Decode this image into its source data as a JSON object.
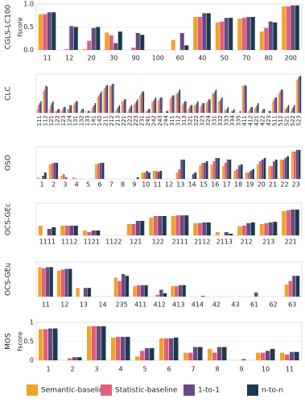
{
  "chart_data": [
    {
      "type": "bar",
      "title": "CGLS-LC100",
      "ylabel": "fscore",
      "categories": [
        "11",
        "12",
        "20",
        "30",
        "90",
        "100",
        "60",
        "40",
        "50",
        "70",
        "80",
        "200"
      ],
      "ylim": [
        0,
        1
      ],
      "yticks": [
        {
          "value": 0,
          "label": "0.0"
        },
        {
          "value": 0.5,
          "label": "0.5"
        },
        {
          "value": 1,
          "label": "1.0"
        }
      ],
      "series": [
        {
          "color": "#f0a32a",
          "values": [
            0.78,
            0,
            0.02,
            0.38,
            0,
            0,
            0.22,
            0.72,
            0.6,
            0.68,
            0.4,
            0.95
          ]
        },
        {
          "color": "#e0607a",
          "values": [
            0.78,
            0.02,
            0.2,
            0.32,
            0.05,
            0,
            0,
            0.72,
            0.62,
            0.7,
            0.48,
            0.95
          ]
        },
        {
          "color": "#6a4a80",
          "values": [
            0.82,
            0.52,
            0.48,
            0.15,
            0.37,
            0,
            0.37,
            0.8,
            0.7,
            0.72,
            0.62,
            0.97
          ]
        },
        {
          "color": "#1a3a50",
          "values": [
            0.82,
            0.5,
            0.5,
            0.4,
            0.33,
            0,
            0.1,
            0.8,
            0.7,
            0.72,
            0.6,
            0.97
          ]
        }
      ]
    },
    {
      "type": "bar",
      "title": "CLC",
      "categories": [
        "111",
        "112",
        "121",
        "122",
        "123",
        "124",
        "131",
        "132",
        "133",
        "141",
        "142",
        "211",
        "212",
        "213",
        "221",
        "222",
        "223",
        "231",
        "241",
        "242",
        "243",
        "244",
        "311",
        "312",
        "313",
        "321",
        "322",
        "323",
        "324",
        "331",
        "332",
        "333",
        "334",
        "335",
        "411",
        "412",
        "421",
        "422",
        "423",
        "511",
        "512",
        "521",
        "522",
        "523"
      ],
      "ylim": [
        0,
        1
      ],
      "series": [
        {
          "color": "#f0a32a",
          "values": [
            0.1,
            0.55,
            0.1,
            0.05,
            0.05,
            0.1,
            0.2,
            0,
            0.05,
            0.1,
            0.4,
            0.6,
            0.7,
            0.05,
            0.3,
            0.05,
            0.2,
            0.45,
            0.05,
            0.3,
            0.3,
            0,
            0.35,
            0.5,
            0.2,
            0.1,
            0.2,
            0.15,
            0.25,
            0.5,
            0.3,
            0.1,
            0,
            0,
            0.7,
            0.05,
            0.1,
            0,
            0,
            0.3,
            0.5,
            0.1,
            0.05,
            0.85
          ]
        },
        {
          "color": "#e0607a",
          "values": [
            0.2,
            0.6,
            0.2,
            0.05,
            0.1,
            0.1,
            0.25,
            0.05,
            0,
            0.15,
            0.45,
            0.65,
            0.7,
            0.1,
            0.3,
            0.1,
            0.25,
            0.5,
            0.05,
            0.3,
            0.35,
            0,
            0.4,
            0.5,
            0.25,
            0.15,
            0.2,
            0.2,
            0.3,
            0.5,
            0.3,
            0.05,
            0.05,
            0,
            0.7,
            0.1,
            0.15,
            0.05,
            0,
            0.35,
            0.55,
            0.1,
            0.1,
            0.9
          ]
        },
        {
          "color": "#6a4a80",
          "values": [
            0.25,
            0.7,
            0.25,
            0.1,
            0.15,
            0.2,
            0.3,
            0.1,
            0.05,
            0.2,
            0.5,
            0.7,
            0.75,
            0.15,
            0.35,
            0.15,
            0.3,
            0.55,
            0.1,
            0.35,
            0.4,
            0.05,
            0.45,
            0.55,
            0.3,
            0.2,
            0.25,
            0.25,
            0.35,
            0.55,
            0.35,
            0.1,
            0.05,
            0,
            0.72,
            0.15,
            0.2,
            0.1,
            0.05,
            0.4,
            0.6,
            0.15,
            0.15,
            0.95
          ]
        },
        {
          "color": "#1a3a50",
          "values": [
            0.3,
            0.68,
            0.3,
            0.1,
            0.15,
            0.2,
            0.3,
            0.1,
            0.05,
            0.25,
            0.55,
            0.72,
            0.75,
            0.2,
            0.35,
            0.2,
            0.35,
            0.55,
            0.1,
            0.4,
            0.4,
            0.05,
            0.45,
            0.6,
            0.3,
            0.2,
            0.3,
            0.25,
            0.35,
            0.6,
            0.4,
            0.15,
            0.1,
            0.05,
            0.7,
            0.15,
            0.25,
            0.1,
            0.05,
            0.4,
            0.6,
            0.2,
            0.2,
            0.95
          ]
        }
      ]
    },
    {
      "type": "bar",
      "title": "OSO",
      "categories": [
        "1",
        "2",
        "3",
        "4",
        "5",
        "6",
        "7",
        "8",
        "9",
        "10",
        "11",
        "12",
        "13",
        "14",
        "15",
        "16",
        "17",
        "18",
        "19",
        "20",
        "21",
        "22",
        "23"
      ],
      "ylim": [
        0,
        1
      ],
      "series": [
        {
          "color": "#f0a32a",
          "values": [
            0.05,
            0.45,
            0.1,
            0.05,
            0,
            0.45,
            0,
            0,
            0,
            0.2,
            0.25,
            0,
            0.2,
            0,
            0.42,
            0.45,
            0.4,
            0.25,
            0.2,
            0.45,
            0.4,
            0.6,
            0.85
          ]
        },
        {
          "color": "#e0607a",
          "values": [
            0,
            0.48,
            0.15,
            0.02,
            0,
            0.48,
            0,
            0,
            0,
            0.2,
            0.25,
            0,
            0.3,
            0,
            0.5,
            0.55,
            0.5,
            0.3,
            0.2,
            0.55,
            0.4,
            0.6,
            0.85
          ]
        },
        {
          "color": "#6a4a80",
          "values": [
            0.1,
            0.5,
            0.05,
            0,
            0,
            0.5,
            0,
            0,
            0,
            0.25,
            0.22,
            0,
            0.6,
            0.15,
            0.5,
            0.65,
            0.6,
            0.42,
            0.25,
            0.6,
            0.55,
            0.65,
            0.9
          ]
        },
        {
          "color": "#1a3a50",
          "values": [
            0.2,
            0.5,
            0,
            0,
            0,
            0.5,
            0,
            0,
            0.05,
            0.2,
            0.25,
            0,
            0.6,
            0.2,
            0.55,
            0.65,
            0.6,
            0.45,
            0.3,
            0.65,
            0.6,
            0.7,
            0.9
          ]
        }
      ]
    },
    {
      "type": "bar",
      "title": "OCS-GEc",
      "categories": [
        "1111",
        "1112",
        "1121",
        "1122",
        "121",
        "122",
        "2111",
        "2112",
        "2113",
        "212",
        "213",
        "221"
      ],
      "ylim": [
        0,
        1
      ],
      "series": [
        {
          "color": "#f0a32a",
          "values": [
            0.3,
            0.3,
            0.15,
            0,
            0.35,
            0.55,
            0.6,
            0.38,
            0.1,
            0.28,
            0.35,
            0.75
          ]
        },
        {
          "color": "#e0607a",
          "values": [
            0,
            0.3,
            0.1,
            0,
            0.35,
            0.6,
            0.62,
            0.38,
            0,
            0.3,
            0.38,
            0.78
          ]
        },
        {
          "color": "#6a4a80",
          "values": [
            0.2,
            0.3,
            0.15,
            0,
            0.45,
            0.6,
            0.62,
            0.4,
            0.1,
            0.38,
            0.4,
            0.8
          ]
        },
        {
          "color": "#1a3a50",
          "values": [
            0.25,
            0.3,
            0.15,
            0,
            0.45,
            0.6,
            0.62,
            0.4,
            0.05,
            0.4,
            0.42,
            0.8
          ]
        }
      ]
    },
    {
      "type": "bar",
      "title": "OCS-GEu",
      "categories": [
        "11",
        "12",
        "13",
        "14",
        "235",
        "411",
        "412",
        "413",
        "414",
        "42",
        "43",
        "61",
        "62",
        "63"
      ],
      "ylim": [
        0,
        1
      ],
      "series": [
        {
          "color": "#f0a32a",
          "values": [
            0.85,
            0.75,
            0.25,
            0,
            0.55,
            0.3,
            0,
            0.3,
            0,
            0,
            0,
            0,
            0,
            0.35
          ]
        },
        {
          "color": "#e0607a",
          "values": [
            0.82,
            0.78,
            0,
            0,
            0.45,
            0.33,
            0.05,
            0.3,
            0,
            0,
            0,
            0,
            0,
            0.45
          ]
        },
        {
          "color": "#6a4a80",
          "values": [
            0.85,
            0.8,
            0.25,
            0,
            0.65,
            0.33,
            0.2,
            0.33,
            0,
            0,
            0,
            0.12,
            0,
            0.6
          ]
        },
        {
          "color": "#1a3a50",
          "values": [
            0.85,
            0.8,
            0.25,
            0,
            0.6,
            0.33,
            0.1,
            0.33,
            0.02,
            0,
            0,
            0,
            0,
            0.6
          ]
        }
      ]
    },
    {
      "type": "bar",
      "title": "MOS",
      "ylabel": "fscore",
      "categories": [
        "1",
        "2",
        "3",
        "4",
        "5",
        "6",
        "7",
        "8",
        "9",
        "10",
        "11"
      ],
      "ylim": [
        0,
        1
      ],
      "yticks": [
        0,
        0.5,
        1
      ],
      "series": [
        {
          "name": "Semantic-baseline",
          "color": "#f0a32a",
          "values": [
            0.82,
            0,
            0.9,
            0.6,
            0.1,
            0.58,
            0.2,
            0.3,
            0,
            0.2,
            0.2
          ]
        },
        {
          "name": "Statistic-baseline",
          "color": "#e0607a",
          "values": [
            0.82,
            0.05,
            0.9,
            0.62,
            0.25,
            0.58,
            0.2,
            0.2,
            0,
            0.2,
            0.15
          ]
        },
        {
          "name": "1-to-1",
          "color": "#6a4a80",
          "values": [
            0.84,
            0.08,
            0.9,
            0.62,
            0.32,
            0.58,
            0.35,
            0.35,
            0.03,
            0.25,
            0.22
          ]
        },
        {
          "name": "n-to-n",
          "color": "#1a3a50",
          "values": [
            0.84,
            0.08,
            0.9,
            0.62,
            0.32,
            0.6,
            0.35,
            0.35,
            0,
            0.3,
            0.22
          ]
        }
      ]
    }
  ]
}
